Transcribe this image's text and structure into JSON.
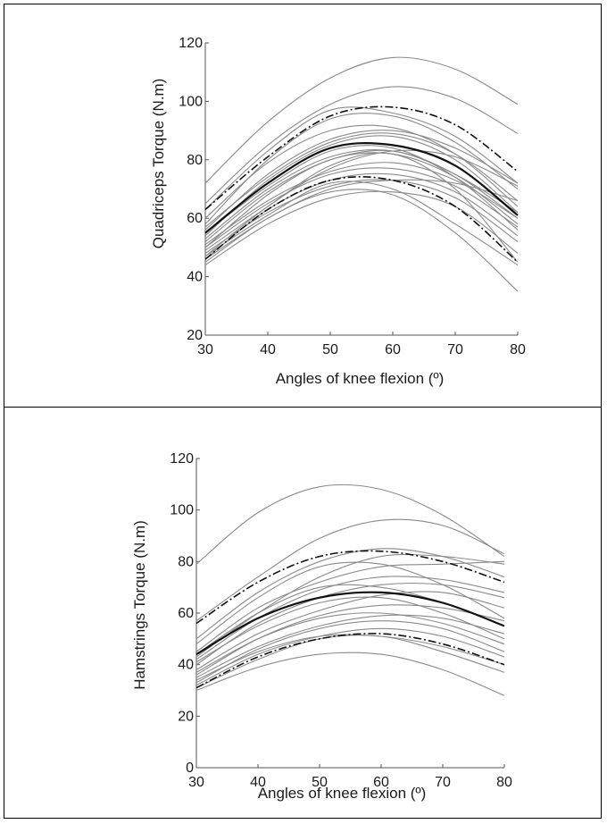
{
  "chart_data": [
    {
      "type": "line",
      "xlabel": "Angles of knee flexion (º)",
      "ylabel": "Quadriceps Torque (N.m)",
      "xlim": [
        30,
        80
      ],
      "ylim": [
        20,
        120
      ],
      "xticks": [
        30,
        40,
        50,
        60,
        70,
        80
      ],
      "yticks": [
        20,
        40,
        60,
        80,
        100,
        120
      ],
      "grid": false,
      "series": [
        {
          "style": "solid",
          "x": [
            30,
            40,
            50,
            60,
            70,
            80
          ],
          "y": [
            72,
            93,
            108,
            115,
            111,
            99
          ]
        },
        {
          "style": "solid",
          "x": [
            30,
            40,
            50,
            60,
            70,
            80
          ],
          "y": [
            65,
            85,
            99,
            105,
            101,
            89
          ]
        },
        {
          "style": "solid",
          "x": [
            30,
            40,
            50,
            60,
            70,
            80
          ],
          "y": [
            63,
            83,
            97,
            96,
            88,
            72
          ]
        },
        {
          "style": "solid",
          "x": [
            30,
            40,
            50,
            60,
            70,
            80
          ],
          "y": [
            58,
            80,
            94,
            95,
            86,
            70
          ]
        },
        {
          "style": "solid",
          "x": [
            30,
            40,
            50,
            60,
            70,
            80
          ],
          "y": [
            60,
            79,
            90,
            91,
            82,
            64
          ]
        },
        {
          "style": "solid",
          "x": [
            30,
            40,
            50,
            60,
            70,
            80
          ],
          "y": [
            56,
            75,
            87,
            90,
            84,
            72
          ]
        },
        {
          "style": "solid",
          "x": [
            30,
            40,
            50,
            60,
            70,
            80
          ],
          "y": [
            54,
            73,
            85,
            88,
            80,
            62
          ]
        },
        {
          "style": "solid",
          "x": [
            30,
            40,
            50,
            60,
            70,
            80
          ],
          "y": [
            55,
            71,
            83,
            84,
            74,
            56
          ]
        },
        {
          "style": "solid",
          "x": [
            30,
            40,
            50,
            60,
            70,
            80
          ],
          "y": [
            52,
            69,
            80,
            83,
            75,
            60
          ]
        },
        {
          "style": "solid",
          "x": [
            30,
            40,
            50,
            60,
            70,
            80
          ],
          "y": [
            50,
            68,
            80,
            82,
            74,
            58
          ]
        },
        {
          "style": "solid",
          "x": [
            30,
            40,
            50,
            60,
            70,
            80
          ],
          "y": [
            53,
            70,
            81,
            83,
            75,
            62
          ]
        },
        {
          "style": "solid",
          "x": [
            30,
            40,
            50,
            60,
            70,
            80
          ],
          "y": [
            47,
            64,
            77,
            83,
            81,
            71
          ]
        },
        {
          "style": "solid",
          "x": [
            30,
            40,
            50,
            60,
            70,
            80
          ],
          "y": [
            50,
            65,
            75,
            77,
            71,
            57
          ]
        },
        {
          "style": "solid",
          "x": [
            30,
            40,
            50,
            60,
            70,
            80
          ],
          "y": [
            46,
            63,
            73,
            75,
            69,
            54
          ]
        },
        {
          "style": "solid",
          "x": [
            30,
            40,
            50,
            60,
            70,
            80
          ],
          "y": [
            48,
            62,
            71,
            73,
            67,
            52
          ]
        },
        {
          "style": "solid",
          "x": [
            30,
            40,
            50,
            60,
            70,
            80
          ],
          "y": [
            47,
            61,
            72,
            70,
            58,
            44
          ]
        },
        {
          "style": "solid",
          "x": [
            30,
            40,
            50,
            60,
            70,
            80
          ],
          "y": [
            45,
            60,
            69,
            68,
            55,
            35
          ]
        },
        {
          "style": "solid",
          "x": [
            30,
            40,
            50,
            60,
            70,
            80
          ],
          "y": [
            44,
            58,
            67,
            69,
            64,
            48
          ]
        },
        {
          "style": "solid",
          "x": [
            30,
            40,
            50,
            60,
            70,
            80
          ],
          "y": [
            46,
            60,
            70,
            73,
            72,
            66
          ]
        },
        {
          "style": "solid",
          "x": [
            30,
            40,
            50,
            60,
            70,
            80
          ],
          "y": [
            49,
            64,
            78,
            82,
            70,
            45
          ]
        },
        {
          "style": "solid",
          "x": [
            30,
            40,
            50,
            60,
            70,
            80
          ],
          "y": [
            51,
            66,
            76,
            79,
            73,
            60
          ]
        },
        {
          "style": "solid",
          "x": [
            30,
            40,
            50,
            60,
            70,
            80
          ],
          "y": [
            57,
            74,
            86,
            89,
            82,
            66
          ]
        },
        {
          "style": "mean",
          "x": [
            30,
            40,
            50,
            60,
            70,
            80
          ],
          "y": [
            55,
            72,
            84,
            85,
            78,
            61
          ]
        },
        {
          "style": "sd",
          "x": [
            30,
            40,
            50,
            60,
            70,
            80
          ],
          "y": [
            63,
            81,
            95,
            98,
            92,
            76
          ]
        },
        {
          "style": "sd",
          "x": [
            30,
            40,
            50,
            60,
            70,
            80
          ],
          "y": [
            46,
            63,
            73,
            73,
            64,
            45
          ]
        }
      ]
    },
    {
      "type": "line",
      "xlabel": "Angles of knee flexion (º)",
      "ylabel": "Hamstrings Torque (N.m)",
      "xlim": [
        30,
        80
      ],
      "ylim": [
        0,
        120
      ],
      "xticks": [
        30,
        40,
        50,
        60,
        70,
        80
      ],
      "yticks": [
        0,
        20,
        40,
        60,
        80,
        100,
        120
      ],
      "grid": false,
      "series": [
        {
          "style": "solid",
          "x": [
            30,
            40,
            50,
            60,
            70,
            80
          ],
          "y": [
            79,
            99,
            109,
            108,
            98,
            82
          ]
        },
        {
          "style": "solid",
          "x": [
            30,
            40,
            50,
            60,
            70,
            80
          ],
          "y": [
            57,
            74,
            89,
            96,
            94,
            83
          ]
        },
        {
          "style": "solid",
          "x": [
            30,
            40,
            50,
            60,
            70,
            80
          ],
          "y": [
            50,
            68,
            80,
            85,
            82,
            74
          ]
        },
        {
          "style": "solid",
          "x": [
            30,
            40,
            50,
            60,
            70,
            80
          ],
          "y": [
            43,
            60,
            74,
            82,
            82,
            79
          ]
        },
        {
          "style": "solid",
          "x": [
            30,
            40,
            50,
            60,
            70,
            80
          ],
          "y": [
            45,
            62,
            72,
            78,
            79,
            80
          ]
        },
        {
          "style": "solid",
          "x": [
            30,
            40,
            50,
            60,
            70,
            80
          ],
          "y": [
            48,
            66,
            78,
            79,
            71,
            58
          ]
        },
        {
          "style": "solid",
          "x": [
            30,
            40,
            50,
            60,
            70,
            80
          ],
          "y": [
            42,
            58,
            69,
            74,
            73,
            68
          ]
        },
        {
          "style": "solid",
          "x": [
            30,
            40,
            50,
            60,
            70,
            80
          ],
          "y": [
            40,
            56,
            66,
            71,
            71,
            66
          ]
        },
        {
          "style": "solid",
          "x": [
            30,
            40,
            50,
            60,
            70,
            80
          ],
          "y": [
            44,
            60,
            70,
            70,
            64,
            55
          ]
        },
        {
          "style": "solid",
          "x": [
            30,
            40,
            50,
            60,
            70,
            80
          ],
          "y": [
            38,
            52,
            61,
            67,
            68,
            62
          ]
        },
        {
          "style": "solid",
          "x": [
            30,
            40,
            50,
            60,
            70,
            80
          ],
          "y": [
            41,
            55,
            64,
            66,
            60,
            50
          ]
        },
        {
          "style": "solid",
          "x": [
            30,
            40,
            50,
            60,
            70,
            80
          ],
          "y": [
            36,
            50,
            59,
            63,
            62,
            57
          ]
        },
        {
          "style": "solid",
          "x": [
            30,
            40,
            50,
            60,
            70,
            80
          ],
          "y": [
            37,
            50,
            58,
            60,
            56,
            48
          ]
        },
        {
          "style": "solid",
          "x": [
            30,
            40,
            50,
            60,
            70,
            80
          ],
          "y": [
            35,
            47,
            55,
            59,
            58,
            52
          ]
        },
        {
          "style": "solid",
          "x": [
            30,
            40,
            50,
            60,
            70,
            80
          ],
          "y": [
            33,
            46,
            54,
            57,
            54,
            45
          ]
        },
        {
          "style": "solid",
          "x": [
            30,
            40,
            50,
            60,
            70,
            80
          ],
          "y": [
            32,
            44,
            51,
            54,
            51,
            43
          ]
        },
        {
          "style": "solid",
          "x": [
            30,
            40,
            50,
            60,
            70,
            80
          ],
          "y": [
            34,
            45,
            51,
            51,
            47,
            40
          ]
        },
        {
          "style": "solid",
          "x": [
            30,
            40,
            50,
            60,
            70,
            80
          ],
          "y": [
            31,
            42,
            50,
            51,
            45,
            37
          ]
        },
        {
          "style": "solid",
          "x": [
            30,
            40,
            50,
            60,
            70,
            80
          ],
          "y": [
            30,
            39,
            44,
            44,
            38,
            28
          ]
        },
        {
          "style": "mean",
          "x": [
            30,
            40,
            50,
            60,
            70,
            80
          ],
          "y": [
            44,
            58,
            66,
            68,
            64,
            55
          ]
        },
        {
          "style": "sd",
          "x": [
            30,
            40,
            50,
            60,
            70,
            80
          ],
          "y": [
            56,
            72,
            82,
            84,
            80,
            72
          ]
        },
        {
          "style": "sd",
          "x": [
            30,
            40,
            50,
            60,
            70,
            80
          ],
          "y": [
            31,
            43,
            50,
            52,
            48,
            40
          ]
        }
      ]
    }
  ]
}
